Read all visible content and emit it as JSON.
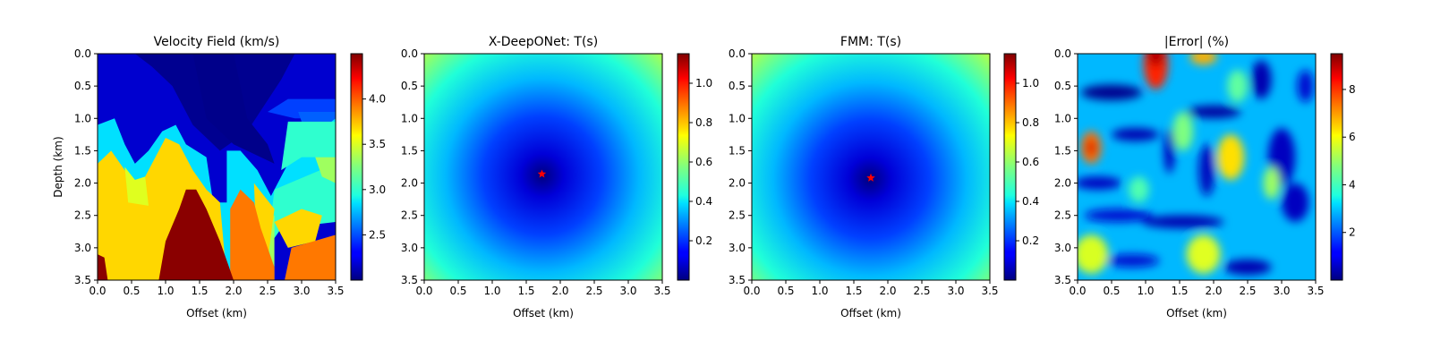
{
  "chart_data": [
    {
      "type": "heatmap",
      "title": "Velocity Field (km/s)",
      "xlabel": "Offset (km)",
      "ylabel": "Depth (km)",
      "xlim": [
        0,
        3.5
      ],
      "ylim": [
        3.5,
        0
      ],
      "x_ticks": [
        "0.0",
        "0.5",
        "1.0",
        "1.5",
        "2.0",
        "2.5",
        "3.0",
        "3.5"
      ],
      "y_ticks": [
        "0.0",
        "0.5",
        "1.0",
        "1.5",
        "2.0",
        "2.5",
        "3.0",
        "3.5"
      ],
      "colorbar": {
        "min": 2.0,
        "max": 4.5,
        "ticks": [
          "2.5",
          "3.0",
          "3.5",
          "4.0"
        ],
        "colormap": "jet"
      },
      "colors": {
        "low": "#00007f",
        "high": "#7f0000"
      }
    },
    {
      "type": "heatmap",
      "title": "X-DeepONet: T(s)",
      "xlabel": "Offset (km)",
      "ylabel": "",
      "xlim": [
        0,
        3.5
      ],
      "ylim": [
        3.5,
        0
      ],
      "x_ticks": [
        "0.0",
        "0.5",
        "1.0",
        "1.5",
        "2.0",
        "2.5",
        "3.0",
        "3.5"
      ],
      "y_ticks": [
        "0.0",
        "0.5",
        "1.0",
        "1.5",
        "2.0",
        "2.5",
        "3.0",
        "3.5"
      ],
      "source": {
        "x": 1.73,
        "y": 1.86,
        "marker": "star",
        "color": "#ff0000"
      },
      "colorbar": {
        "min": 0.0,
        "max": 1.15,
        "ticks": [
          "0.2",
          "0.4",
          "0.6",
          "0.8",
          "1.0"
        ],
        "colormap": "jet"
      }
    },
    {
      "type": "heatmap",
      "title": "FMM: T(s)",
      "xlabel": "Offset (km)",
      "ylabel": "",
      "xlim": [
        0,
        3.5
      ],
      "ylim": [
        3.5,
        0
      ],
      "x_ticks": [
        "0.0",
        "0.5",
        "1.0",
        "1.5",
        "2.0",
        "2.5",
        "3.0",
        "3.5"
      ],
      "y_ticks": [
        "0.0",
        "0.5",
        "1.0",
        "1.5",
        "2.0",
        "2.5",
        "3.0",
        "3.5"
      ],
      "source": {
        "x": 1.75,
        "y": 1.92,
        "marker": "star",
        "color": "#ff0000"
      },
      "colorbar": {
        "min": 0.0,
        "max": 1.15,
        "ticks": [
          "0.2",
          "0.4",
          "0.6",
          "0.8",
          "1.0"
        ],
        "colormap": "jet"
      }
    },
    {
      "type": "heatmap",
      "title": "|Error| (%)",
      "xlabel": "Offset (km)",
      "ylabel": "",
      "xlim": [
        0,
        3.5
      ],
      "ylim": [
        3.5,
        0
      ],
      "x_ticks": [
        "0.0",
        "0.5",
        "1.0",
        "1.5",
        "2.0",
        "2.5",
        "3.0",
        "3.5"
      ],
      "y_ticks": [
        "0.0",
        "0.5",
        "1.0",
        "1.5",
        "2.0",
        "2.5",
        "3.0",
        "3.5"
      ],
      "colorbar": {
        "min": 0.0,
        "max": 9.5,
        "ticks": [
          "2",
          "4",
          "6",
          "8"
        ],
        "colormap": "jet"
      }
    }
  ]
}
